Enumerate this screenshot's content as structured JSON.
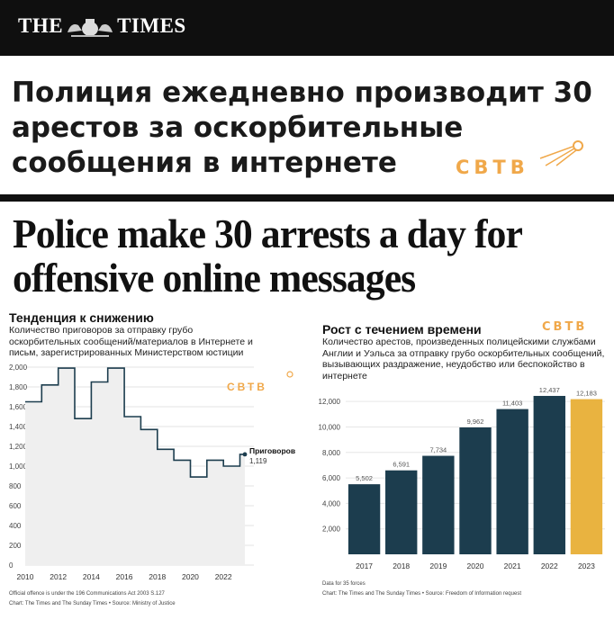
{
  "masthead": {
    "left": "THE",
    "right": "TIMES"
  },
  "russian_headline": "Полиция ежедневно производит 30 арестов за оскорбительные сообщения в интернете",
  "watermark": "СВТВ",
  "english_headline": "Police make 30 arrests a day for offensive online messages",
  "left_chart": {
    "title": "Тенденция к снижению",
    "subtitle": "Количество приговоров за отправку грубо оскорбительных сообщений/материалов в Интернете и письм, зарегистрированных Министерством юстиции",
    "note": "Official offence is under the 196 Communications Act 2003 S.127",
    "source": "Chart: The Times and The Sunday Times • Source: Ministry of Justice"
  },
  "right_chart": {
    "title": "Рост с течением времени",
    "subtitle": "Количество арестов, произведенных полицейскими службами Англии и Уэльса за отправку грубо оскорбительных сообщений, вызывающих раздражение, неудобство или беспокойство в интернете",
    "note": "Data for 35 forces",
    "source": "Chart: The Times and The Sunday Times • Source: Freedom of Information request"
  },
  "chart_data": [
    {
      "type": "line",
      "title": "Тенденция к снижению",
      "ylim": [
        0,
        2000
      ],
      "yticks": [
        "2,000",
        "1,800",
        "1,600",
        "1,400",
        "1,200",
        "1,000",
        "800",
        "600",
        "400",
        "200",
        "0"
      ],
      "xticks": [
        "2010",
        "2012",
        "2014",
        "2016",
        "2018",
        "2020",
        "2022"
      ],
      "x": [
        2010,
        2011,
        2012,
        2013,
        2014,
        2015,
        2016,
        2017,
        2018,
        2019,
        2020,
        2021,
        2022,
        2023
      ],
      "values": [
        1650,
        1820,
        1990,
        1480,
        1850,
        1990,
        1500,
        1370,
        1170,
        1060,
        890,
        1060,
        1000,
        1119
      ],
      "style": "step",
      "grid": true,
      "annotation": {
        "label": "Приговоров",
        "value": "1,119"
      }
    },
    {
      "type": "bar",
      "title": "Рост с течением времени",
      "ylim": [
        0,
        13000
      ],
      "yticks": [
        "12,000",
        "10,000",
        "8,000",
        "6,000",
        "4,000",
        "2,000"
      ],
      "categories": [
        "2017",
        "2018",
        "2019",
        "2020",
        "2021",
        "2022",
        "2023"
      ],
      "values": [
        5502,
        6591,
        7734,
        9962,
        11403,
        12437,
        12183
      ],
      "value_labels": [
        "5,502",
        "6,591",
        "7,734",
        "9,962",
        "11,403",
        "12,437",
        "12,183"
      ],
      "colors": [
        "#1c3d4e",
        "#1c3d4e",
        "#1c3d4e",
        "#1c3d4e",
        "#1c3d4e",
        "#1c3d4e",
        "#e9b340"
      ],
      "grid": true
    }
  ]
}
